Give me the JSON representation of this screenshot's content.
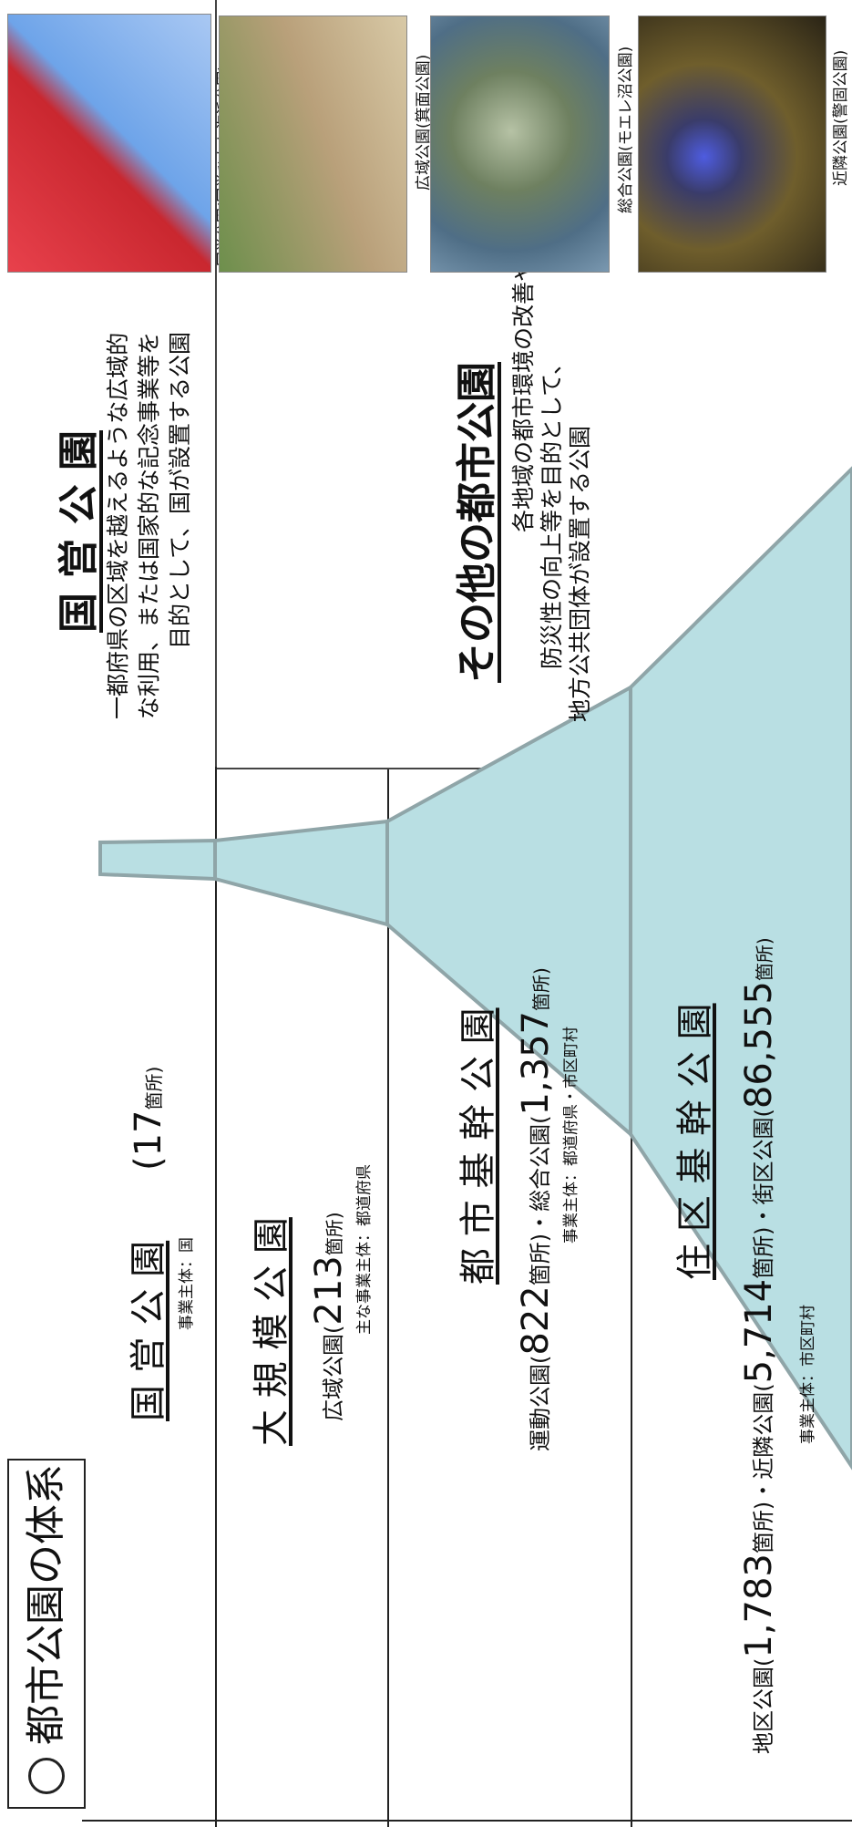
{
  "title": "都市公園の体系",
  "tiers": [
    {
      "name": "国 営 公 園",
      "detail_parts": [
        {
          "t": "(",
          "s": "big"
        },
        {
          "t": "17",
          "s": "big"
        },
        {
          "t": "箇所)",
          "s": "sml"
        }
      ],
      "operator": "事業主体：国"
    },
    {
      "name": "大 規 模 公 園",
      "detail_parts": [
        {
          "t": "広域公園(",
          "s": "norm"
        },
        {
          "t": "213",
          "s": "big"
        },
        {
          "t": "箇所)",
          "s": "sml"
        }
      ],
      "operator": "主な事業主体：都道府県"
    },
    {
      "name": "都 市 基 幹 公 園",
      "detail_parts": [
        {
          "t": "運動公園(",
          "s": "norm"
        },
        {
          "t": "822",
          "s": "big"
        },
        {
          "t": "箇所)・総合公園(",
          "s": "norm"
        },
        {
          "t": "1,357",
          "s": "big"
        },
        {
          "t": "箇所)",
          "s": "sml"
        }
      ],
      "operator": "事業主体：都道府県・市区町村"
    },
    {
      "name": "住 区 基 幹 公 園",
      "detail_parts": [
        {
          "t": "地区公園(",
          "s": "norm"
        },
        {
          "t": "1,783",
          "s": "big"
        },
        {
          "t": "箇所)・近隣公園(",
          "s": "norm"
        },
        {
          "t": "5,714",
          "s": "big"
        },
        {
          "t": "箇所)・街区公園(",
          "s": "norm"
        },
        {
          "t": "86,555",
          "s": "big"
        },
        {
          "t": "箇所)",
          "s": "sml"
        }
      ],
      "operator": "事業主体：市区町村"
    }
  ],
  "national": {
    "heading": "国 営 公 園",
    "lines": [
      "一都府県の区域を越えるような広域的",
      "な利用、または国家的な記念事業等を",
      "目的として、国が設置する公園"
    ]
  },
  "other": {
    "heading": "その他の都市公園",
    "lines": [
      "各地域の都市環境の改善や、",
      "防災性の向上等を目的として、",
      "地方公共団体が設置する公園"
    ]
  },
  "photos": [
    {
      "caption": "国営公園(国営ひたち海浜公園)",
      "icon": "flower-field-photo"
    },
    {
      "caption": "広域公園(箕面公園)",
      "icon": "park-path-photo"
    },
    {
      "caption": "総合公園(モエレ沼公園)",
      "icon": "aerial-park-photo"
    },
    {
      "caption": "近隣公園(警固公園)",
      "icon": "night-illumination-photo"
    }
  ],
  "colors": {
    "funnel_fill": "#b9dfe3",
    "funnel_stroke": "#8fa5a8",
    "line": "#222222"
  }
}
